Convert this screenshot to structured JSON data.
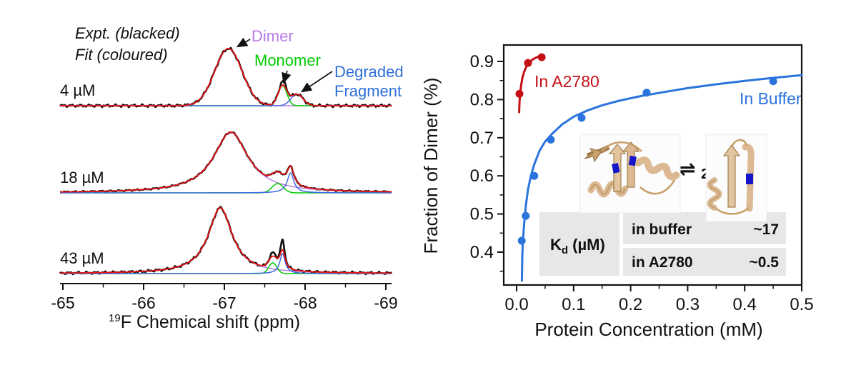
{
  "colors": {
    "fit_red": "#ee1111",
    "dimer_purple": "#b87ce8",
    "monomer_green": "#00cc00",
    "fragment_blue": "#2e6fd8",
    "component_blue": "#4169e1",
    "a2780_red": "#c41015",
    "buffer_blue": "#2b74dd",
    "black": "#111111",
    "table_cell_gray": "#e7e7e7",
    "ribbon_tan": "#dcb992",
    "ribbon_dark": "#a4814f",
    "ribbon_blue": "#1515cc"
  },
  "chart_data": [
    {
      "type": "line",
      "panel": "nmr-spectra",
      "xlabel_sup": "19",
      "xlabel_main": "F Chemical shift (ppm)",
      "xlim": [
        -65,
        -69
      ],
      "x_ticks": [
        -65,
        -66,
        -67,
        -68,
        -69
      ],
      "x_tick_labels": [
        "-65",
        "-66",
        "-67",
        "-68",
        "-69"
      ],
      "x_minor_ticks": [
        -65.5,
        -66.5,
        -67.5,
        -68.5
      ],
      "legend_note_line1": "Expt. (blacked)",
      "legend_note_line2": "Fit (coloured)",
      "peak_labels": [
        {
          "text": "Dimer",
          "color_key": "dimer_purple"
        },
        {
          "text": "Monomer",
          "color_key": "monomer_green"
        },
        {
          "text": "Degraded",
          "color_key": "fragment_blue"
        },
        {
          "text": "Fragment",
          "color_key": "fragment_blue"
        }
      ],
      "spectra": [
        {
          "label": "4 µM",
          "baseline_y": 148,
          "noise_amp": 2.2,
          "components": [
            {
              "name": "dimer",
              "shape": "gauss",
              "center_ppm": -67.05,
              "height": 80,
              "width_ppm": 0.17,
              "color_key": "dimer_purple"
            },
            {
              "name": "monomer",
              "shape": "gauss",
              "center_ppm": -67.72,
              "height": 28,
              "width_ppm": 0.055,
              "color_key": "monomer_green"
            },
            {
              "name": "degraded-fragment",
              "shape": "gauss",
              "center_ppm": -67.9,
              "height": 16,
              "width_ppm": 0.075,
              "color_key": "component_blue"
            }
          ],
          "expt_extra_bumps": [
            {
              "center_ppm": -67.73,
              "height": 6,
              "width_ppm": 0.03
            }
          ]
        },
        {
          "label": "18 µM",
          "baseline_y": 270,
          "noise_amp": 1.2,
          "components": [
            {
              "name": "dimer",
              "shape": "lorentz",
              "center_ppm": -67.08,
              "height": 85,
              "width_ppm": 0.26,
              "color_key": "dimer_purple"
            },
            {
              "name": "monomer",
              "shape": "gauss",
              "center_ppm": -67.66,
              "height": 13,
              "width_ppm": 0.07,
              "color_key": "monomer_green"
            },
            {
              "name": "degraded-fragment",
              "shape": "lorentz",
              "center_ppm": -67.82,
              "height": 28,
              "width_ppm": 0.05,
              "color_key": "component_blue"
            }
          ],
          "expt_extra_bumps": []
        },
        {
          "label": "43 µM",
          "baseline_y": 383,
          "noise_amp": 2.0,
          "components": [
            {
              "name": "dimer",
              "shape": "lorentz",
              "center_ppm": -66.95,
              "height": 92,
              "width_ppm": 0.18,
              "color_key": "dimer_purple"
            },
            {
              "name": "monomer",
              "shape": "gauss",
              "center_ppm": -67.6,
              "height": 15,
              "width_ppm": 0.05,
              "color_key": "monomer_green"
            },
            {
              "name": "degraded-fragment",
              "shape": "lorentz",
              "center_ppm": -67.72,
              "height": 28,
              "width_ppm": 0.04,
              "color_key": "component_blue"
            }
          ],
          "expt_extra_bumps": [
            {
              "center_ppm": -67.72,
              "height": 13,
              "width_ppm": 0.025
            },
            {
              "center_ppm": -67.6,
              "height": 5,
              "width_ppm": 0.03
            }
          ]
        }
      ]
    },
    {
      "type": "scatter",
      "panel": "dimer-fraction",
      "xlabel": "Protein Concentration (mM)",
      "ylabel": "Fraction of Dimer (%)",
      "xlim": [
        -0.023,
        0.5
      ],
      "ylim": [
        0.314,
        0.943
      ],
      "x_ticks": [
        0.0,
        0.1,
        0.2,
        0.3,
        0.4,
        0.5
      ],
      "x_tick_labels": [
        "0.0",
        "0.1",
        "0.2",
        "0.3",
        "0.4",
        "0.5"
      ],
      "x_minor_ticks": [
        0.05,
        0.15,
        0.25,
        0.35,
        0.45
      ],
      "y_ticks": [
        0.4,
        0.5,
        0.6,
        0.7,
        0.8,
        0.9
      ],
      "y_tick_labels": [
        "0.4",
        "0.5",
        "0.6",
        "0.7",
        "0.8",
        "0.9"
      ],
      "y_minor_ticks": [
        0.35,
        0.45,
        0.55,
        0.65,
        0.75,
        0.85
      ],
      "series": [
        {
          "name": "In A2780",
          "color_key": "a2780_red",
          "points": [
            [
              0.005,
              0.815
            ],
            [
              0.02,
              0.896
            ],
            [
              0.044,
              0.911
            ]
          ],
          "curve": [
            [
              0.0045,
              0.767
            ],
            [
              0.005,
              0.79
            ],
            [
              0.006,
              0.812
            ],
            [
              0.008,
              0.838
            ],
            [
              0.01,
              0.856
            ],
            [
              0.013,
              0.872
            ],
            [
              0.017,
              0.886
            ],
            [
              0.022,
              0.897
            ],
            [
              0.028,
              0.905
            ],
            [
              0.034,
              0.91
            ],
            [
              0.04,
              0.914
            ],
            [
              0.046,
              0.917
            ]
          ]
        },
        {
          "name": "In Buffer",
          "color_key": "buffer_blue",
          "points": [
            [
              0.009,
              0.43
            ],
            [
              0.016,
              0.495
            ],
            [
              0.031,
              0.6
            ],
            [
              0.06,
              0.695
            ],
            [
              0.114,
              0.752
            ],
            [
              0.228,
              0.818
            ],
            [
              0.45,
              0.848
            ]
          ],
          "curve": [
            [
              0.0093,
              0.325
            ],
            [
              0.0095,
              0.345
            ],
            [
              0.01,
              0.39
            ],
            [
              0.011,
              0.43
            ],
            [
              0.013,
              0.47
            ],
            [
              0.016,
              0.52
            ],
            [
              0.02,
              0.565
            ],
            [
              0.025,
              0.6
            ],
            [
              0.031,
              0.63
            ],
            [
              0.04,
              0.665
            ],
            [
              0.05,
              0.69
            ],
            [
              0.062,
              0.71
            ],
            [
              0.08,
              0.735
            ],
            [
              0.1,
              0.755
            ],
            [
              0.125,
              0.772
            ],
            [
              0.15,
              0.785
            ],
            [
              0.18,
              0.797
            ],
            [
              0.22,
              0.81
            ],
            [
              0.26,
              0.82
            ],
            [
              0.3,
              0.83
            ],
            [
              0.35,
              0.84
            ],
            [
              0.4,
              0.849
            ],
            [
              0.45,
              0.857
            ],
            [
              0.5,
              0.864
            ]
          ]
        }
      ],
      "series_labels": {
        "a2780": "In A2780",
        "buffer": "In Buffer"
      },
      "equilibrium": {
        "arrow": "⇌",
        "coefficient": "2"
      },
      "inset_table": {
        "header": {
          "k": "K",
          "sub": "d",
          "unit": " (µM)"
        },
        "rows": [
          {
            "label": "in buffer",
            "value": "~17"
          },
          {
            "label": "in A2780",
            "value": "~0.5"
          }
        ]
      }
    }
  ]
}
